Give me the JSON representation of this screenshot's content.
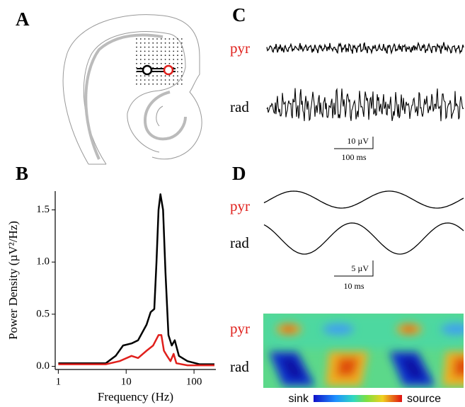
{
  "panels": {
    "a": {
      "label": "A"
    },
    "b": {
      "label": "B"
    },
    "c": {
      "label": "C",
      "rows": [
        "pyr",
        "rad"
      ],
      "scale_v": "10 µV",
      "scale_t": "100 ms"
    },
    "d": {
      "label": "D",
      "rows": [
        "pyr",
        "rad"
      ],
      "scale_v": "5 µV",
      "scale_t": "10 ms",
      "csd_rows": [
        "pyr",
        "rad"
      ],
      "colorbar": [
        "sink",
        "source"
      ]
    }
  },
  "chart_data": {
    "type": "line",
    "x_label": "Frequency (Hz)",
    "y_label": "Power Density (µV²/Hz)",
    "xlim": [
      0.9,
      210
    ],
    "ylim": [
      -0.03,
      1.68
    ],
    "log_x": true,
    "xticks": [
      1,
      10,
      100
    ],
    "yticks": [
      {
        "value": 0,
        "label": "0.0"
      },
      {
        "value": 0.5,
        "label": "0.5"
      },
      {
        "value": 1,
        "label": "1.0"
      },
      {
        "value": 1.5,
        "label": "1.5"
      }
    ],
    "series": [
      {
        "color": "#000000",
        "x": [
          1,
          3,
          5,
          7,
          9,
          12,
          15,
          20,
          23,
          26,
          28,
          30,
          32,
          35,
          38,
          42,
          47,
          52,
          60,
          80,
          120,
          200
        ],
        "values": [
          0.03,
          0.03,
          0.03,
          0.1,
          0.2,
          0.22,
          0.25,
          0.4,
          0.52,
          0.55,
          1.0,
          1.5,
          1.65,
          1.5,
          0.9,
          0.3,
          0.2,
          0.25,
          0.1,
          0.05,
          0.02,
          0.02
        ]
      },
      {
        "color": "#e0201c",
        "x": [
          1,
          3,
          5,
          8,
          12,
          15,
          20,
          25,
          30,
          33,
          36,
          40,
          45,
          50,
          55,
          80,
          200
        ],
        "values": [
          0.02,
          0.02,
          0.02,
          0.05,
          0.1,
          0.08,
          0.15,
          0.2,
          0.3,
          0.3,
          0.15,
          0.1,
          0.05,
          0.12,
          0.03,
          0.01,
          0.01
        ]
      }
    ]
  }
}
